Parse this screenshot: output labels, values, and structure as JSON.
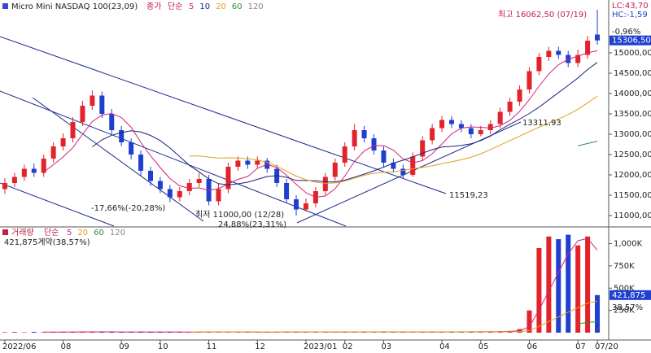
{
  "header": {
    "title": "Micro Mini NASDAQ 100(23,09)",
    "price_label": "종가",
    "ma_label": "단순",
    "lc": "LC:43,70",
    "hc": "HC:-1,59",
    "change": "-0,96%"
  },
  "chart_data": [
    {
      "type": "candlestick",
      "categories": [
        "2022/06",
        null,
        null,
        null,
        null,
        null,
        "08",
        null,
        null,
        null,
        null,
        null,
        "09",
        null,
        null,
        null,
        "10",
        null,
        null,
        null,
        null,
        "11",
        null,
        null,
        null,
        null,
        "12",
        null,
        null,
        null,
        null,
        "2023/01",
        null,
        null,
        null,
        "02",
        null,
        null,
        null,
        "03",
        null,
        null,
        null,
        null,
        null,
        "04",
        null,
        null,
        null,
        "05",
        null,
        null,
        null,
        null,
        "06",
        null,
        null,
        null,
        null,
        "07",
        null,
        "07/20"
      ],
      "open": [
        11650,
        11800,
        11950,
        12150,
        12050,
        12400,
        12700,
        12900,
        13300,
        13700,
        13950,
        13500,
        13100,
        12800,
        12500,
        12100,
        11850,
        11650,
        11450,
        11600,
        11800,
        11900,
        11350,
        11650,
        12200,
        12350,
        12250,
        12350,
        12150,
        11800,
        11400,
        11150,
        11300,
        11600,
        11950,
        12300,
        12700,
        13100,
        12900,
        12600,
        12300,
        12150,
        12000,
        12450,
        12850,
        13150,
        13350,
        13250,
        13150,
        13000,
        13100,
        13250,
        13550,
        13800,
        14100,
        14550,
        14900,
        15050,
        14950,
        14750,
        14950,
        15450
      ],
      "high": [
        11920,
        12050,
        12250,
        12280,
        12500,
        12800,
        13020,
        13420,
        13820,
        14080,
        14050,
        13620,
        13200,
        12900,
        12600,
        12200,
        11950,
        11750,
        11700,
        11900,
        12050,
        12000,
        11780,
        12300,
        12450,
        12450,
        12450,
        12420,
        12250,
        11900,
        11500,
        11420,
        11700,
        12050,
        12400,
        12800,
        13250,
        13200,
        13000,
        12700,
        12400,
        12250,
        12550,
        12950,
        13250,
        13450,
        13450,
        13350,
        13250,
        13200,
        13350,
        13650,
        13900,
        14200,
        14650,
        15000,
        15150,
        15150,
        15050,
        15080,
        15420,
        16062.5
      ],
      "low": [
        11530,
        11700,
        11850,
        11950,
        11950,
        12300,
        12600,
        12800,
        13200,
        13600,
        13400,
        13000,
        12700,
        12380,
        11980,
        11730,
        11550,
        11330,
        11350,
        11500,
        11700,
        11250,
        11250,
        11550,
        12100,
        12150,
        12150,
        12050,
        11700,
        11300,
        11000,
        11100,
        11200,
        11500,
        11850,
        12200,
        12600,
        12800,
        12500,
        12200,
        12050,
        11900,
        11950,
        12350,
        12750,
        13050,
        13150,
        13050,
        12900,
        12950,
        13000,
        13150,
        13450,
        13700,
        14000,
        14450,
        14800,
        14850,
        14650,
        14650,
        14850,
        15200
      ],
      "close": [
        11800,
        11950,
        12150,
        12050,
        12400,
        12700,
        12900,
        13300,
        13700,
        13950,
        13500,
        13100,
        12800,
        12500,
        12100,
        11850,
        11650,
        11450,
        11600,
        11800,
        11900,
        11350,
        11650,
        12200,
        12350,
        12250,
        12350,
        12150,
        11800,
        11400,
        11150,
        11300,
        11600,
        11950,
        12300,
        12700,
        13100,
        12900,
        12600,
        12300,
        12150,
        12000,
        12450,
        12850,
        13150,
        13350,
        13250,
        13150,
        13000,
        13100,
        13250,
        13550,
        13800,
        14100,
        14550,
        14900,
        15050,
        14950,
        14750,
        14950,
        15300,
        15306.5
      ],
      "up_color": "#e3222a",
      "down_color": "#1f3fd0",
      "ylim": [
        10740,
        16240
      ],
      "yticks": [
        {
          "value": 11000,
          "label": "11000,00"
        },
        {
          "value": 11500,
          "label": "11500,00"
        },
        {
          "value": 12000,
          "label": "12000,00"
        },
        {
          "value": 12500,
          "label": "12500,00"
        },
        {
          "value": 13000,
          "label": "13000,00"
        },
        {
          "value": 13500,
          "label": "13500,00"
        },
        {
          "value": 14000,
          "label": "14000,00"
        },
        {
          "value": 14500,
          "label": "14500,00"
        },
        {
          "value": 15000,
          "label": "15000,00"
        }
      ],
      "ma_periods": [
        5,
        10,
        20,
        60,
        120
      ],
      "ma_colors": [
        "#d2237a",
        "#1a237e",
        "#e0a020",
        "#2e8b3a",
        "#888888"
      ],
      "current": {
        "value": 15306.5,
        "label": "15306,50"
      },
      "annotations": [
        "최고 16062,50 (07/19)",
        "13311,93",
        "11519,23",
        "-17,66%(-20,28%)",
        "최저 11000,00 (12/28)",
        "24,88%(23,31%)"
      ]
    },
    {
      "type": "volume",
      "title": "거래량",
      "ma_label": "단순",
      "summary": "421,875계약(38,57%)",
      "ratio": "38,57%",
      "values": [
        6000,
        8000,
        5000,
        9000,
        7000,
        6000,
        10000,
        8000,
        12000,
        9000,
        7000,
        8000,
        6000,
        9000,
        11000,
        7000,
        8000,
        6000,
        9000,
        7000,
        8000,
        10000,
        6000,
        9000,
        7000,
        8000,
        6000,
        5000,
        9000,
        11000,
        8000,
        7000,
        9000,
        6000,
        8000,
        10000,
        9000,
        7000,
        8000,
        12000,
        6000,
        9000,
        7000,
        8000,
        10000,
        9000,
        11000,
        8000,
        12000,
        9000,
        14000,
        16000,
        20000,
        40000,
        250000,
        950000,
        1080000,
        1050000,
        1100000,
        980000,
        1080000,
        421875
      ],
      "ylim": [
        0,
        1160000
      ],
      "yticks": [
        {
          "value": 250000,
          "label": "250K"
        },
        {
          "value": 500000,
          "label": "500K"
        },
        {
          "value": 750000,
          "label": "750K"
        },
        {
          "value": 1000000,
          "label": "1,000K"
        }
      ],
      "ma_periods": [
        5,
        20,
        60,
        120
      ],
      "ma_colors": [
        "#d2237a",
        "#e0a020",
        "#2e8b3a",
        "#888888"
      ],
      "current": {
        "value": 421875,
        "label": "421,875"
      }
    }
  ]
}
